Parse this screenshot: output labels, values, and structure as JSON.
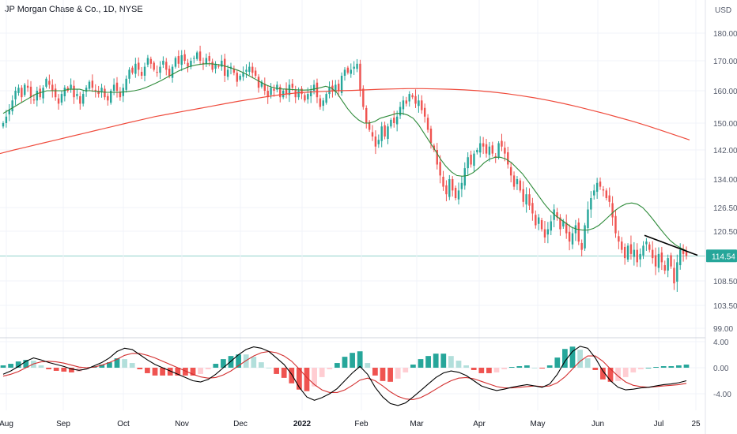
{
  "title": "JP Morgan Chase & Co., 1D, NYSE",
  "currency": "USD",
  "colors": {
    "up": "#26a69a",
    "down": "#ef5350",
    "ma_short": "#2e8b3a",
    "ma_long": "#ef4b3c",
    "trendline": "#000000",
    "macd": "#000000",
    "signal": "#d32f2f",
    "hist_up_strong": "#26a69a",
    "hist_up_weak": "#b2dfdb",
    "hist_down_strong": "#ef5350",
    "hist_down_weak": "#ffcdd2",
    "last_price_bg": "#26a69a",
    "grid": "#f0f3fa"
  },
  "chart_data": [
    {
      "type": "candlestick",
      "title": "JP Morgan Chase & Co., 1D, NYSE",
      "ylabel": "USD",
      "y_ticks": [
        "180.00",
        "170.00",
        "160.00",
        "150.00",
        "142.00",
        "134.00",
        "126.50",
        "120.50",
        "114.54",
        "108.50",
        "103.50",
        "99.00"
      ],
      "y_tick_values": [
        180,
        170,
        160,
        150,
        142,
        134,
        126.5,
        120.5,
        114.54,
        108.5,
        103.5,
        99
      ],
      "last_price": "114.54",
      "x_ticks": [
        "Aug",
        "Sep",
        "Oct",
        "Nov",
        "Dec",
        "2022",
        "Feb",
        "Mar",
        "Apr",
        "May",
        "Jun",
        "Jul",
        "25"
      ],
      "series": [
        {
          "name": "",
          "kind": "candles",
          "closes": [
            150,
            152,
            154,
            157,
            160,
            161,
            158,
            162,
            161,
            158,
            157,
            160,
            158,
            161,
            164,
            162,
            160,
            158,
            156,
            159,
            161,
            160,
            162,
            158,
            159,
            156,
            159,
            161,
            163,
            161,
            160,
            159,
            161,
            158,
            157,
            160,
            162,
            160,
            158,
            161,
            164,
            167,
            166,
            169,
            167,
            165,
            168,
            171,
            169,
            167,
            166,
            168,
            170,
            167,
            165,
            168,
            171,
            169,
            172,
            170,
            168,
            170,
            171,
            173,
            170,
            169,
            171,
            170,
            167,
            169,
            168,
            170,
            165,
            167,
            168,
            166,
            163,
            165,
            166,
            167,
            168,
            166,
            165,
            161,
            163,
            160,
            158,
            161,
            160,
            162,
            158,
            160,
            159,
            162,
            161,
            158,
            160,
            159,
            157,
            159,
            160,
            162,
            158,
            155,
            157,
            159,
            161,
            160,
            162,
            160,
            165,
            167,
            166,
            167,
            168,
            169,
            160,
            155,
            150,
            148,
            146,
            143,
            145,
            149,
            146,
            149,
            151,
            150,
            152,
            155,
            157,
            156,
            159,
            158,
            156,
            157,
            154,
            152,
            148,
            144,
            142,
            138,
            135,
            132,
            130,
            134,
            131,
            129,
            131,
            133,
            137,
            140,
            138,
            141,
            142,
            144,
            143,
            141,
            143,
            141,
            140,
            144,
            143,
            141,
            138,
            135,
            132,
            134,
            131,
            128,
            130,
            127,
            125,
            122,
            124,
            121,
            119,
            121,
            123,
            126,
            124,
            121,
            123,
            120,
            118,
            120,
            122,
            118,
            116,
            122,
            126,
            129,
            131,
            133,
            132,
            131,
            129,
            128,
            124,
            120,
            118,
            116,
            114,
            117,
            115,
            116,
            113,
            115,
            117,
            118,
            116,
            114,
            112,
            115,
            113,
            111,
            114,
            112,
            108,
            113,
            116,
            115,
            114.54
          ]
        },
        {
          "name": "",
          "kind": "ma_short",
          "values": [
            153,
            154,
            155,
            156,
            157,
            158,
            159,
            159.5,
            160,
            160,
            160,
            160,
            160.5,
            160.5,
            160.5,
            160,
            160,
            159.8,
            159.6,
            159.5,
            159.5,
            159.5,
            159.6,
            159.8,
            160,
            160.4,
            161,
            161.8,
            162.6,
            163.5,
            164.5,
            165.5,
            166.5,
            167.3,
            168,
            168.5,
            168.8,
            169,
            169,
            168.8,
            168.5,
            168,
            167.4,
            166.8,
            166,
            165,
            164,
            163,
            162,
            161.3,
            160.8,
            160.6,
            160.5,
            160.4,
            160.3,
            160.2,
            160.3,
            160.6,
            161,
            161.5,
            161,
            159.5,
            157,
            154.5,
            152.5,
            151,
            150,
            150,
            150.5,
            151.5,
            152,
            152.5,
            153,
            153,
            152.5,
            151.5,
            149.5,
            147,
            144.5,
            142,
            139.5,
            137.5,
            136,
            135,
            134.8,
            135,
            135.8,
            137,
            138.5,
            139.5,
            140,
            140,
            139.5,
            138.5,
            137,
            135.5,
            133.5,
            131.5,
            129.5,
            127.5,
            125.8,
            124.5,
            123.5,
            122.5,
            121.5,
            121,
            120.8,
            120.8,
            121.2,
            122,
            123.2,
            124.5,
            125.8,
            126.8,
            127.5,
            127.7,
            127.4,
            126.5,
            125,
            123.3,
            121.5,
            119.8,
            118.3,
            117.2,
            116.4,
            115.8
          ]
        },
        {
          "name": "",
          "kind": "ma_long",
          "values": [
            141,
            142,
            143,
            144,
            145,
            146,
            147,
            148,
            149,
            150,
            151,
            152,
            152.8,
            153.6,
            154.4,
            155.2,
            156,
            156.8,
            157.5,
            158.2,
            158.8,
            159.3,
            159.6,
            159.8,
            160,
            160.1,
            160.3,
            160.5,
            160.6,
            160.7,
            160.7,
            160.6,
            160.5,
            160.3,
            160,
            159.6,
            159.1,
            158.5,
            157.8,
            157,
            156.1,
            155.1,
            154,
            152.9,
            151.7,
            150.5,
            149.2,
            147.8,
            146.4,
            145
          ]
        },
        {
          "name": "",
          "kind": "trendline",
          "points": [
            [
              0,
              119.5
            ],
            [
              1,
              114.7
            ]
          ]
        }
      ]
    },
    {
      "type": "line",
      "title": "",
      "y_ticks": [
        "4.00",
        "0.00",
        "-4.00"
      ],
      "y_tick_values": [
        4,
        0,
        -4
      ],
      "series": [
        {
          "name": "",
          "kind": "macd",
          "values": [
            -1,
            -0.5,
            0.2,
            1,
            1.5,
            1.2,
            0.8,
            0.5,
            0.2,
            -0.2,
            -0.4,
            -0.2,
            0.3,
            0.8,
            1.5,
            2.5,
            3,
            2.8,
            2,
            1.2,
            0.5,
            0,
            -0.5,
            -1,
            -1.5,
            -2,
            -2.2,
            -1.8,
            -1,
            0,
            1,
            2,
            2.8,
            3.2,
            3,
            2.5,
            1.5,
            0.5,
            -1,
            -3,
            -4.5,
            -5,
            -4.6,
            -4,
            -3.2,
            -2,
            -0.8,
            0.2,
            -1,
            -3,
            -4.5,
            -5.5,
            -5.8,
            -5.4,
            -4.5,
            -3.5,
            -2.5,
            -1.5,
            -0.8,
            -0.5,
            -0.7,
            -1.2,
            -2,
            -2.8,
            -3.2,
            -3.5,
            -3.3,
            -3,
            -2.8,
            -2.6,
            -2.8,
            -3,
            -2.5,
            -1,
            1,
            2.5,
            3.3,
            3,
            1.5,
            -0.5,
            -2,
            -3,
            -3.4,
            -3.3,
            -3.1,
            -3,
            -2.8,
            -2.6,
            -2.5,
            -2.3,
            -2
          ]
        },
        {
          "name": "",
          "kind": "signal",
          "values": [
            -1.3,
            -1,
            -0.6,
            0,
            0.6,
            0.9,
            1,
            0.9,
            0.7,
            0.4,
            0.1,
            0,
            0.1,
            0.4,
            0.8,
            1.3,
            1.9,
            2.2,
            2.2,
            1.9,
            1.5,
            1,
            0.5,
            0,
            -0.5,
            -1,
            -1.4,
            -1.6,
            -1.5,
            -1.1,
            -0.5,
            0.3,
            1.1,
            1.8,
            2.3,
            2.5,
            2.3,
            1.8,
            1,
            -0.2,
            -1.5,
            -2.6,
            -3.4,
            -3.8,
            -3.8,
            -3.4,
            -2.7,
            -1.9,
            -1.6,
            -2,
            -2.8,
            -3.7,
            -4.4,
            -4.8,
            -4.9,
            -4.6,
            -4,
            -3.3,
            -2.6,
            -2,
            -1.6,
            -1.5,
            -1.7,
            -2.1,
            -2.5,
            -2.9,
            -3.1,
            -3.1,
            -3,
            -2.9,
            -2.8,
            -2.9,
            -2.8,
            -2.3,
            -1.4,
            -0.2,
            1,
            1.8,
            1.8,
            1,
            -0.2,
            -1.3,
            -2.2,
            -2.7,
            -2.9,
            -3,
            -2.9,
            -2.8,
            -2.7,
            -2.6,
            -2.4
          ]
        }
      ]
    }
  ]
}
